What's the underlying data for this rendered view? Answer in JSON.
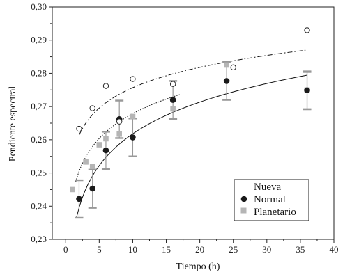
{
  "chart_data": {
    "type": "scatter",
    "title": "",
    "xlabel": "Tiempo (h)",
    "ylabel": "Pendiente espectral",
    "xlim": [
      -2,
      40
    ],
    "ylim": [
      0.23,
      0.3
    ],
    "x_ticks": [
      0,
      5,
      10,
      15,
      20,
      25,
      30,
      35,
      40
    ],
    "x_tick_labels": [
      "0",
      "5",
      "10",
      "15",
      "20",
      "25",
      "30",
      "35",
      "40"
    ],
    "y_ticks": [
      0.23,
      0.24,
      0.25,
      0.26,
      0.27,
      0.28,
      0.29,
      0.3
    ],
    "y_tick_labels": [
      "0,23",
      "0,24",
      "0,25",
      "0,26",
      "0,27",
      "0,28",
      "0,29",
      "0,30"
    ],
    "grid": false,
    "legend_position": "bottom-right",
    "series": [
      {
        "name": "Nueva",
        "marker": "open-circle",
        "color": "#222222",
        "x": [
          2,
          4,
          6,
          8,
          10,
          16,
          25,
          36
        ],
        "y": [
          0.2633,
          0.2695,
          0.2762,
          0.2655,
          0.2783,
          0.2768,
          0.2818,
          0.293
        ],
        "fit": {
          "style": "dash-dot",
          "a": 0.2553,
          "b": 0.00885
        }
      },
      {
        "name": "Normal",
        "marker": "filled-circle",
        "color": "#1a1a1a",
        "x": [
          2,
          4,
          6,
          8,
          10,
          16,
          24,
          36
        ],
        "y": [
          0.2422,
          0.2453,
          0.2568,
          0.2662,
          0.2607,
          0.272,
          0.2777,
          0.2749
        ],
        "error_low": [
          0.2365,
          0.2395,
          0.2512,
          0.2605,
          0.255,
          0.2663,
          0.272,
          0.2692
        ],
        "error_high": [
          0.2478,
          0.251,
          0.2624,
          0.2718,
          0.2664,
          0.2777,
          0.2834,
          0.2806
        ],
        "fit": {
          "style": "solid",
          "a": 0.23,
          "b": 0.0138
        }
      },
      {
        "name": "Planetario",
        "marker": "filled-square",
        "color": "#b5b5b5",
        "x": [
          1,
          3,
          4,
          5,
          6,
          8,
          10,
          16,
          24,
          36
        ],
        "y": [
          0.245,
          0.2533,
          0.252,
          0.2585,
          0.2603,
          0.2617,
          0.267,
          0.2693,
          0.2825,
          0.275
        ],
        "error_low": [
          null,
          null,
          null,
          null,
          null,
          null,
          null,
          null,
          null,
          0.2692
        ],
        "error_high": [
          null,
          null,
          null,
          null,
          null,
          null,
          null,
          null,
          null,
          0.2804
        ],
        "fit": {
          "style": "dotted",
          "a": 0.243,
          "b": 0.0108
        }
      }
    ]
  }
}
